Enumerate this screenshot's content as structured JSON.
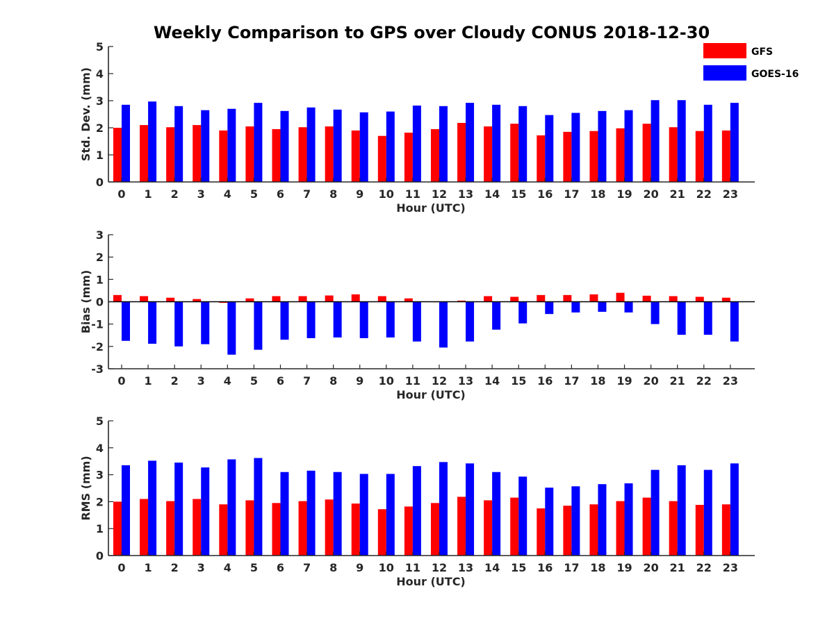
{
  "figure_title": "Weekly Comparison to GPS over Cloudy CONUS 2018-12-30",
  "legend": [
    {
      "label": "GFS",
      "color": "#ff0000"
    },
    {
      "label": "GOES-16",
      "color": "#0000ff"
    }
  ],
  "chart_data": [
    {
      "type": "bar",
      "xlabel": "Hour (UTC)",
      "ylabel": "Std. Dev. (mm)",
      "ylim": [
        0,
        5
      ],
      "yticks": [
        0,
        1,
        2,
        3,
        4,
        5
      ],
      "categories": [
        "0",
        "1",
        "2",
        "3",
        "4",
        "5",
        "6",
        "7",
        "8",
        "9",
        "10",
        "11",
        "12",
        "13",
        "14",
        "15",
        "16",
        "17",
        "18",
        "19",
        "20",
        "21",
        "22",
        "23"
      ],
      "series": [
        {
          "name": "GFS",
          "color": "#ff0000",
          "values": [
            2.0,
            2.1,
            2.02,
            2.1,
            1.9,
            2.05,
            1.95,
            2.02,
            2.05,
            1.9,
            1.7,
            1.82,
            1.95,
            2.18,
            2.05,
            2.15,
            1.72,
            1.85,
            1.88,
            1.98,
            2.15,
            2.02,
            1.88,
            1.9
          ]
        },
        {
          "name": "GOES-16",
          "color": "#0000ff",
          "values": [
            2.85,
            2.97,
            2.8,
            2.65,
            2.7,
            2.92,
            2.62,
            2.75,
            2.67,
            2.57,
            2.6,
            2.82,
            2.8,
            2.92,
            2.85,
            2.8,
            2.47,
            2.55,
            2.62,
            2.65,
            3.02,
            3.02,
            2.85,
            2.92
          ]
        }
      ]
    },
    {
      "type": "bar",
      "xlabel": "Hour (UTC)",
      "ylabel": "Bias (mm)",
      "ylim": [
        -3,
        3
      ],
      "yticks": [
        -3,
        -2,
        -1,
        0,
        1,
        2,
        3
      ],
      "zero_line": true,
      "categories": [
        "0",
        "1",
        "2",
        "3",
        "4",
        "5",
        "6",
        "7",
        "8",
        "9",
        "10",
        "11",
        "12",
        "13",
        "14",
        "15",
        "16",
        "17",
        "18",
        "19",
        "20",
        "21",
        "22",
        "23"
      ],
      "series": [
        {
          "name": "GFS",
          "color": "#ff0000",
          "values": [
            0.3,
            0.25,
            0.18,
            0.12,
            -0.05,
            0.15,
            0.25,
            0.25,
            0.28,
            0.33,
            0.25,
            0.15,
            0.0,
            0.05,
            0.25,
            0.22,
            0.3,
            0.3,
            0.33,
            0.4,
            0.27,
            0.25,
            0.22,
            0.18
          ]
        },
        {
          "name": "GOES-16",
          "color": "#0000ff",
          "values": [
            -1.75,
            -1.88,
            -2.0,
            -1.9,
            -2.37,
            -2.15,
            -1.7,
            -1.63,
            -1.6,
            -1.63,
            -1.6,
            -1.78,
            -2.05,
            -1.78,
            -1.25,
            -0.97,
            -0.55,
            -0.48,
            -0.45,
            -0.48,
            -1.0,
            -1.48,
            -1.48,
            -1.78
          ]
        }
      ]
    },
    {
      "type": "bar",
      "xlabel": "Hour (UTC)",
      "ylabel": "RMS (mm)",
      "ylim": [
        0,
        5
      ],
      "yticks": [
        0,
        1,
        2,
        3,
        4,
        5
      ],
      "categories": [
        "0",
        "1",
        "2",
        "3",
        "4",
        "5",
        "6",
        "7",
        "8",
        "9",
        "10",
        "11",
        "12",
        "13",
        "14",
        "15",
        "16",
        "17",
        "18",
        "19",
        "20",
        "21",
        "22",
        "23"
      ],
      "series": [
        {
          "name": "GFS",
          "color": "#ff0000",
          "values": [
            2.0,
            2.1,
            2.02,
            2.1,
            1.9,
            2.05,
            1.95,
            2.02,
            2.08,
            1.93,
            1.72,
            1.82,
            1.95,
            2.18,
            2.05,
            2.15,
            1.75,
            1.85,
            1.9,
            2.02,
            2.15,
            2.02,
            1.88,
            1.9
          ]
        },
        {
          "name": "GOES-16",
          "color": "#0000ff",
          "values": [
            3.35,
            3.52,
            3.45,
            3.27,
            3.57,
            3.62,
            3.1,
            3.15,
            3.1,
            3.03,
            3.03,
            3.32,
            3.47,
            3.42,
            3.1,
            2.93,
            2.52,
            2.57,
            2.65,
            2.68,
            3.18,
            3.35,
            3.18,
            3.42
          ]
        }
      ]
    }
  ]
}
